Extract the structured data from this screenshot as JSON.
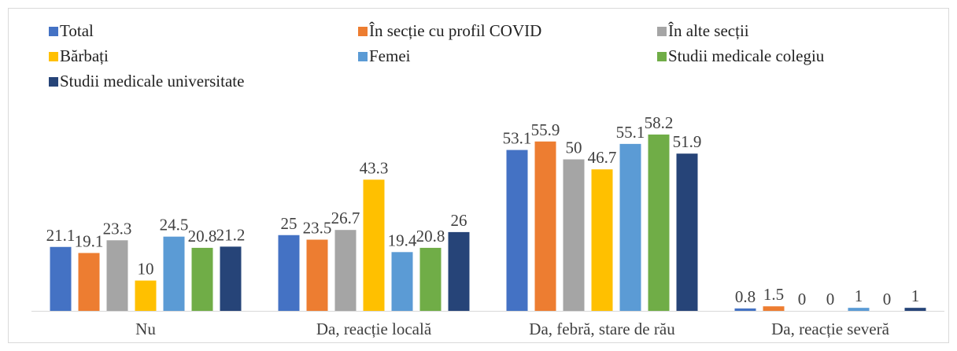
{
  "chart_data": {
    "type": "bar",
    "categories": [
      "Nu",
      "Da, reacție locală",
      "Da, febră, stare de rău",
      "Da, reacție severă"
    ],
    "series": [
      {
        "name": "Total",
        "color": "#4472c4",
        "values": [
          21.1,
          25,
          53.1,
          0.8
        ]
      },
      {
        "name": "În secție cu profil COVID",
        "color": "#ed7d31",
        "values": [
          19.1,
          23.5,
          55.9,
          1.5
        ]
      },
      {
        "name": "În alte secții",
        "color": "#a5a5a5",
        "values": [
          23.3,
          26.7,
          50,
          0
        ]
      },
      {
        "name": "Bărbați",
        "color": "#ffc000",
        "values": [
          10,
          43.3,
          46.7,
          0
        ]
      },
      {
        "name": "Femei",
        "color": "#5b9bd5",
        "values": [
          24.5,
          19.4,
          55.1,
          1
        ]
      },
      {
        "name": "Studii medicale colegiu",
        "color": "#70ad47",
        "values": [
          20.8,
          20.8,
          58.2,
          0
        ]
      },
      {
        "name": "Studii medicale universitate",
        "color": "#264478",
        "values": [
          21.2,
          26,
          51.9,
          1
        ]
      }
    ],
    "ylim": [
      0,
      70
    ]
  }
}
